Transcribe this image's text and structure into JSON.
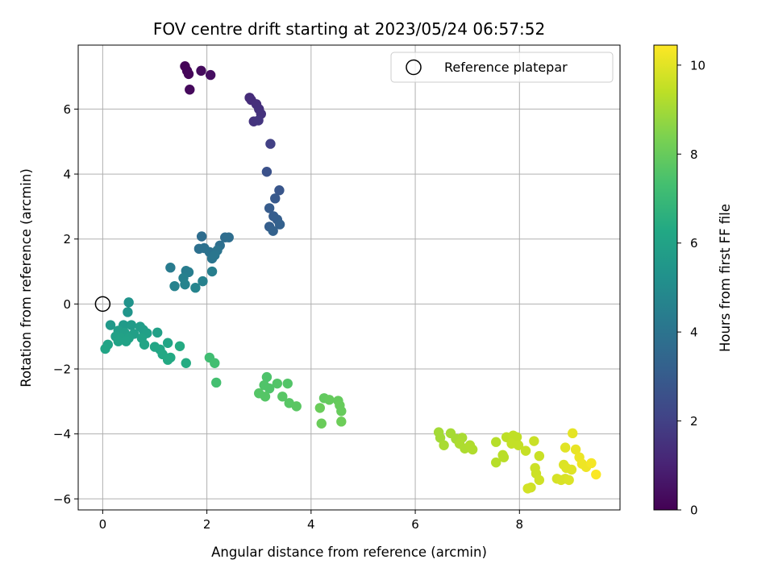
{
  "chart_data": {
    "type": "scatter",
    "title": "FOV centre drift starting at 2023/05/24 06:57:52",
    "xlabel": "Angular distance from reference (arcmin)",
    "ylabel": "Rotation from reference (arcmin)",
    "xlim": [
      -0.47,
      9.93
    ],
    "ylim": [
      -6.34,
      7.97
    ],
    "xticks": [
      0,
      2,
      4,
      6,
      8
    ],
    "yticks": [
      -6,
      -4,
      -2,
      0,
      2,
      4,
      6
    ],
    "grid": true,
    "legend": {
      "position": "top-right",
      "entries": [
        "Reference platepar"
      ]
    },
    "reference_point": {
      "x": 0,
      "y": 0
    },
    "colorbar": {
      "label": "Hours from first FF file",
      "range": [
        0,
        10.45
      ],
      "ticks": [
        0,
        2,
        4,
        6,
        8,
        10
      ],
      "colormap": "viridis"
    },
    "series": [
      {
        "points": [
          {
            "x": 1.58,
            "y": 7.32,
            "h": 0.05
          },
          {
            "x": 1.62,
            "y": 7.18,
            "h": 0.1
          },
          {
            "x": 1.65,
            "y": 7.08,
            "h": 0.15
          },
          {
            "x": 1.89,
            "y": 7.18,
            "h": 0.3
          },
          {
            "x": 2.07,
            "y": 7.05,
            "h": 0.4
          },
          {
            "x": 1.67,
            "y": 6.6,
            "h": 0.25
          },
          {
            "x": 2.82,
            "y": 6.35,
            "h": 1.3
          },
          {
            "x": 2.85,
            "y": 6.28,
            "h": 1.35
          },
          {
            "x": 2.95,
            "y": 6.15,
            "h": 1.4
          },
          {
            "x": 3.0,
            "y": 6.0,
            "h": 1.45
          },
          {
            "x": 3.04,
            "y": 5.85,
            "h": 1.5
          },
          {
            "x": 2.9,
            "y": 5.62,
            "h": 1.55
          },
          {
            "x": 2.99,
            "y": 5.65,
            "h": 1.6
          },
          {
            "x": 3.22,
            "y": 4.93,
            "h": 2.0
          },
          {
            "x": 3.15,
            "y": 4.07,
            "h": 2.6
          },
          {
            "x": 3.39,
            "y": 3.5,
            "h": 2.8
          },
          {
            "x": 3.31,
            "y": 3.25,
            "h": 2.9
          },
          {
            "x": 3.2,
            "y": 2.95,
            "h": 3.0
          },
          {
            "x": 3.28,
            "y": 2.7,
            "h": 3.05
          },
          {
            "x": 3.35,
            "y": 2.6,
            "h": 3.1
          },
          {
            "x": 3.2,
            "y": 2.38,
            "h": 3.15
          },
          {
            "x": 3.4,
            "y": 2.45,
            "h": 3.2
          },
          {
            "x": 3.27,
            "y": 2.25,
            "h": 3.25
          },
          {
            "x": 1.9,
            "y": 2.08,
            "h": 3.7
          },
          {
            "x": 2.35,
            "y": 2.05,
            "h": 3.7
          },
          {
            "x": 2.42,
            "y": 2.05,
            "h": 3.75
          },
          {
            "x": 2.25,
            "y": 1.8,
            "h": 3.8
          },
          {
            "x": 1.85,
            "y": 1.7,
            "h": 3.85
          },
          {
            "x": 1.95,
            "y": 1.72,
            "h": 3.9
          },
          {
            "x": 2.05,
            "y": 1.6,
            "h": 3.95
          },
          {
            "x": 2.2,
            "y": 1.65,
            "h": 4.0
          },
          {
            "x": 2.1,
            "y": 1.4,
            "h": 4.05
          },
          {
            "x": 2.15,
            "y": 1.5,
            "h": 4.1
          },
          {
            "x": 1.3,
            "y": 1.12,
            "h": 4.3
          },
          {
            "x": 1.6,
            "y": 1.02,
            "h": 4.35
          },
          {
            "x": 1.65,
            "y": 0.98,
            "h": 4.4
          },
          {
            "x": 2.1,
            "y": 1.0,
            "h": 4.45
          },
          {
            "x": 1.55,
            "y": 0.8,
            "h": 4.5
          },
          {
            "x": 1.92,
            "y": 0.7,
            "h": 4.55
          },
          {
            "x": 1.38,
            "y": 0.55,
            "h": 4.6
          },
          {
            "x": 1.58,
            "y": 0.6,
            "h": 4.65
          },
          {
            "x": 1.78,
            "y": 0.5,
            "h": 4.7
          },
          {
            "x": 0.5,
            "y": 0.05,
            "h": 5.3
          },
          {
            "x": 0.48,
            "y": -0.25,
            "h": 5.4
          },
          {
            "x": 0.15,
            "y": -0.65,
            "h": 5.6
          },
          {
            "x": 0.4,
            "y": -0.65,
            "h": 5.65
          },
          {
            "x": 0.55,
            "y": -0.65,
            "h": 5.7
          },
          {
            "x": 0.72,
            "y": -0.7,
            "h": 5.75
          },
          {
            "x": 0.78,
            "y": -0.8,
            "h": 5.8
          },
          {
            "x": 0.3,
            "y": -0.82,
            "h": 5.8
          },
          {
            "x": 0.42,
            "y": -0.88,
            "h": 5.85
          },
          {
            "x": 0.6,
            "y": -0.92,
            "h": 5.85
          },
          {
            "x": 0.85,
            "y": -0.9,
            "h": 5.9
          },
          {
            "x": 1.05,
            "y": -0.88,
            "h": 5.9
          },
          {
            "x": 0.25,
            "y": -1.0,
            "h": 5.9
          },
          {
            "x": 0.35,
            "y": -1.05,
            "h": 5.95
          },
          {
            "x": 0.5,
            "y": -1.05,
            "h": 5.95
          },
          {
            "x": 0.75,
            "y": -1.05,
            "h": 6.0
          },
          {
            "x": 0.3,
            "y": -1.15,
            "h": 6.0
          },
          {
            "x": 0.45,
            "y": -1.15,
            "h": 6.0
          },
          {
            "x": 0.1,
            "y": -1.25,
            "h": 6.05
          },
          {
            "x": 0.05,
            "y": -1.38,
            "h": 6.1
          },
          {
            "x": 0.8,
            "y": -1.25,
            "h": 6.1
          },
          {
            "x": 1.0,
            "y": -1.32,
            "h": 6.15
          },
          {
            "x": 1.25,
            "y": -1.2,
            "h": 6.15
          },
          {
            "x": 1.1,
            "y": -1.4,
            "h": 6.2
          },
          {
            "x": 1.15,
            "y": -1.55,
            "h": 6.25
          },
          {
            "x": 1.25,
            "y": -1.72,
            "h": 6.3
          },
          {
            "x": 1.3,
            "y": -1.65,
            "h": 6.3
          },
          {
            "x": 1.48,
            "y": -1.3,
            "h": 6.35
          },
          {
            "x": 1.6,
            "y": -1.82,
            "h": 6.4
          },
          {
            "x": 2.05,
            "y": -1.65,
            "h": 7.2
          },
          {
            "x": 2.15,
            "y": -1.82,
            "h": 7.25
          },
          {
            "x": 2.18,
            "y": -2.42,
            "h": 7.3
          },
          {
            "x": 3.15,
            "y": -2.25,
            "h": 7.5
          },
          {
            "x": 3.1,
            "y": -2.5,
            "h": 7.55
          },
          {
            "x": 3.2,
            "y": -2.6,
            "h": 7.55
          },
          {
            "x": 3.35,
            "y": -2.45,
            "h": 7.6
          },
          {
            "x": 3.55,
            "y": -2.45,
            "h": 7.6
          },
          {
            "x": 3.0,
            "y": -2.75,
            "h": 7.65
          },
          {
            "x": 3.12,
            "y": -2.85,
            "h": 7.65
          },
          {
            "x": 3.45,
            "y": -2.85,
            "h": 7.7
          },
          {
            "x": 3.58,
            "y": -3.05,
            "h": 7.7
          },
          {
            "x": 3.72,
            "y": -3.15,
            "h": 7.75
          },
          {
            "x": 4.25,
            "y": -2.9,
            "h": 7.9
          },
          {
            "x": 4.35,
            "y": -2.95,
            "h": 7.95
          },
          {
            "x": 4.52,
            "y": -2.98,
            "h": 7.95
          },
          {
            "x": 4.55,
            "y": -3.12,
            "h": 8.0
          },
          {
            "x": 4.58,
            "y": -3.3,
            "h": 8.0
          },
          {
            "x": 4.17,
            "y": -3.2,
            "h": 8.05
          },
          {
            "x": 4.2,
            "y": -3.68,
            "h": 8.05
          },
          {
            "x": 4.58,
            "y": -3.62,
            "h": 8.1
          },
          {
            "x": 6.45,
            "y": -3.95,
            "h": 9.0
          },
          {
            "x": 6.48,
            "y": -4.12,
            "h": 9.0
          },
          {
            "x": 6.68,
            "y": -3.98,
            "h": 9.05
          },
          {
            "x": 6.78,
            "y": -4.15,
            "h": 9.05
          },
          {
            "x": 6.9,
            "y": -4.12,
            "h": 9.1
          },
          {
            "x": 6.55,
            "y": -4.35,
            "h": 9.1
          },
          {
            "x": 6.85,
            "y": -4.3,
            "h": 9.15
          },
          {
            "x": 6.95,
            "y": -4.45,
            "h": 9.15
          },
          {
            "x": 7.05,
            "y": -4.35,
            "h": 9.2
          },
          {
            "x": 7.1,
            "y": -4.48,
            "h": 9.2
          },
          {
            "x": 7.55,
            "y": -4.25,
            "h": 9.3
          },
          {
            "x": 7.55,
            "y": -4.88,
            "h": 9.3
          },
          {
            "x": 7.68,
            "y": -4.65,
            "h": 9.35
          },
          {
            "x": 7.7,
            "y": -4.72,
            "h": 9.35
          },
          {
            "x": 7.75,
            "y": -4.1,
            "h": 9.4
          },
          {
            "x": 7.82,
            "y": -4.15,
            "h": 9.4
          },
          {
            "x": 7.88,
            "y": -4.05,
            "h": 9.45
          },
          {
            "x": 7.95,
            "y": -4.1,
            "h": 9.45
          },
          {
            "x": 7.85,
            "y": -4.3,
            "h": 9.5
          },
          {
            "x": 7.98,
            "y": -4.35,
            "h": 9.5
          },
          {
            "x": 8.12,
            "y": -4.52,
            "h": 9.55
          },
          {
            "x": 8.28,
            "y": -4.22,
            "h": 9.6
          },
          {
            "x": 8.38,
            "y": -4.68,
            "h": 9.6
          },
          {
            "x": 8.3,
            "y": -5.05,
            "h": 9.65
          },
          {
            "x": 8.32,
            "y": -5.22,
            "h": 9.65
          },
          {
            "x": 8.38,
            "y": -5.42,
            "h": 9.7
          },
          {
            "x": 8.22,
            "y": -5.65,
            "h": 9.7
          },
          {
            "x": 8.16,
            "y": -5.68,
            "h": 9.75
          },
          {
            "x": 8.72,
            "y": -5.38,
            "h": 9.8
          },
          {
            "x": 8.8,
            "y": -5.42,
            "h": 9.85
          },
          {
            "x": 8.88,
            "y": -5.38,
            "h": 9.85
          },
          {
            "x": 8.95,
            "y": -5.42,
            "h": 9.9
          },
          {
            "x": 8.85,
            "y": -4.95,
            "h": 9.9
          },
          {
            "x": 8.9,
            "y": -5.05,
            "h": 9.95
          },
          {
            "x": 9.0,
            "y": -5.1,
            "h": 9.95
          },
          {
            "x": 8.88,
            "y": -4.42,
            "h": 10.0
          },
          {
            "x": 9.02,
            "y": -3.98,
            "h": 10.05
          },
          {
            "x": 9.08,
            "y": -4.48,
            "h": 10.1
          },
          {
            "x": 9.15,
            "y": -4.72,
            "h": 10.15
          },
          {
            "x": 9.2,
            "y": -4.92,
            "h": 10.2
          },
          {
            "x": 9.28,
            "y": -5.02,
            "h": 10.2
          },
          {
            "x": 9.38,
            "y": -4.9,
            "h": 10.3
          },
          {
            "x": 9.47,
            "y": -5.25,
            "h": 10.4
          }
        ]
      }
    ]
  }
}
